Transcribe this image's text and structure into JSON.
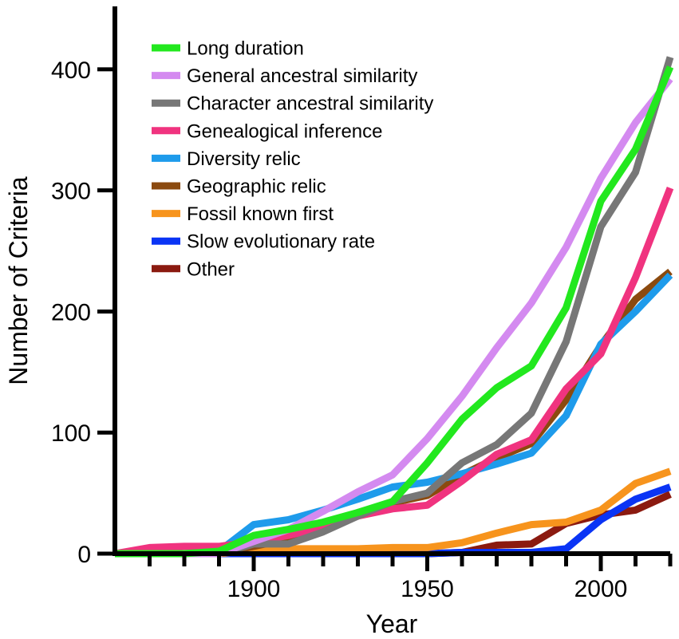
{
  "chart_data": {
    "type": "line",
    "title": "",
    "xlabel": "Year",
    "ylabel": "Number of Criteria",
    "xlim": [
      1860,
      2020
    ],
    "ylim": [
      0,
      450
    ],
    "x_ticks": [
      1900,
      1950,
      2000
    ],
    "y_ticks": [
      0,
      100,
      200,
      300,
      400
    ],
    "x_minor_step": 10,
    "grid": false,
    "legend_position": "top-left",
    "series": [
      {
        "name": "Other",
        "color": "#8B1A10",
        "x": [
          1860,
          1870,
          1880,
          1890,
          1900,
          1910,
          1920,
          1930,
          1940,
          1950,
          1960,
          1970,
          1980,
          1990,
          2000,
          2010,
          2020
        ],
        "y": [
          0,
          0,
          0,
          0,
          0,
          0,
          0,
          0,
          0,
          0,
          1,
          7,
          8,
          25,
          32,
          36,
          49
        ]
      },
      {
        "name": "Slow evolutionary rate",
        "color": "#0A34F5",
        "x": [
          1860,
          1870,
          1880,
          1890,
          1900,
          1910,
          1920,
          1930,
          1940,
          1950,
          1960,
          1970,
          1980,
          1990,
          2000,
          2010,
          2020
        ],
        "y": [
          0,
          0,
          0,
          0,
          0,
          0,
          0,
          0,
          0,
          0,
          1,
          1,
          1,
          4,
          28,
          45,
          55
        ]
      },
      {
        "name": "Fossil known first",
        "color": "#F7941D",
        "x": [
          1860,
          1870,
          1880,
          1890,
          1900,
          1910,
          1920,
          1930,
          1940,
          1950,
          1960,
          1970,
          1980,
          1990,
          2000,
          2010,
          2020
        ],
        "y": [
          0,
          0,
          0,
          0,
          3,
          4,
          4,
          4,
          5,
          5,
          9,
          17,
          24,
          26,
          36,
          58,
          68
        ]
      },
      {
        "name": "Geographic relic",
        "color": "#8B4A0F",
        "x": [
          1860,
          1870,
          1880,
          1890,
          1900,
          1910,
          1920,
          1930,
          1940,
          1950,
          1960,
          1970,
          1980,
          1990,
          2000,
          2010,
          2020
        ],
        "y": [
          0,
          0,
          0,
          0,
          6,
          12,
          20,
          34,
          42,
          48,
          65,
          79,
          91,
          127,
          172,
          210,
          233
        ]
      },
      {
        "name": "Diversity relic",
        "color": "#1E9BEB",
        "x": [
          1860,
          1870,
          1880,
          1890,
          1900,
          1910,
          1920,
          1930,
          1940,
          1950,
          1960,
          1970,
          1980,
          1990,
          2000,
          2010,
          2020
        ],
        "y": [
          0,
          0,
          0,
          2,
          24,
          28,
          36,
          45,
          55,
          59,
          66,
          74,
          83,
          114,
          173,
          200,
          230
        ]
      },
      {
        "name": "Genealogical inference",
        "color": "#F0337F",
        "x": [
          1860,
          1870,
          1880,
          1890,
          1900,
          1910,
          1920,
          1930,
          1940,
          1950,
          1960,
          1970,
          1980,
          1990,
          2000,
          2010,
          2020
        ],
        "y": [
          0,
          5,
          6,
          6,
          10,
          15,
          22,
          31,
          37,
          40,
          60,
          82,
          94,
          136,
          165,
          228,
          302
        ]
      },
      {
        "name": "Character ancestral similarity",
        "color": "#777777",
        "x": [
          1860,
          1870,
          1880,
          1890,
          1900,
          1910,
          1920,
          1930,
          1940,
          1950,
          1960,
          1970,
          1980,
          1990,
          2000,
          2010,
          2020
        ],
        "y": [
          0,
          0,
          0,
          0,
          8,
          8,
          18,
          31,
          43,
          50,
          75,
          90,
          116,
          175,
          270,
          315,
          410
        ]
      },
      {
        "name": "General ancestral similarity",
        "color": "#D48AF0",
        "x": [
          1860,
          1870,
          1880,
          1890,
          1900,
          1910,
          1920,
          1930,
          1940,
          1950,
          1960,
          1970,
          1980,
          1990,
          2000,
          2010,
          2020
        ],
        "y": [
          0,
          0,
          0,
          0,
          10,
          20,
          35,
          51,
          65,
          95,
          130,
          170,
          207,
          253,
          310,
          356,
          392
        ]
      },
      {
        "name": "Long duration",
        "color": "#22E81E",
        "x": [
          1860,
          1870,
          1880,
          1890,
          1900,
          1910,
          1920,
          1930,
          1940,
          1950,
          1960,
          1970,
          1980,
          1990,
          2000,
          2010,
          2020
        ],
        "y": [
          0,
          0,
          0,
          2,
          15,
          20,
          26,
          34,
          43,
          75,
          111,
          137,
          155,
          203,
          291,
          334,
          402
        ]
      }
    ],
    "legend_order": [
      "Long duration",
      "General ancestral similarity",
      "Character ancestral similarity",
      "Genealogical inference",
      "Diversity relic",
      "Geographic relic",
      "Fossil known first",
      "Slow evolutionary rate",
      "Other"
    ]
  }
}
